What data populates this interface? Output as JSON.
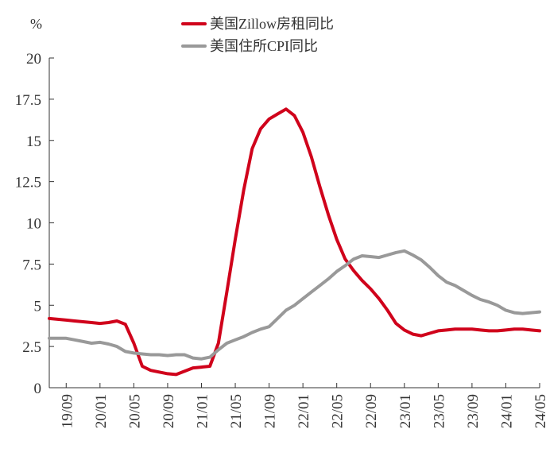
{
  "chart_data": {
    "type": "line",
    "unit_label": "%",
    "ylim": [
      0,
      20
    ],
    "y_ticks": [
      "0",
      "2.5",
      "5",
      "7.5",
      "10",
      "12.5",
      "15",
      "17.5",
      "20"
    ],
    "x_tick_labels": [
      "19/09",
      "20/01",
      "20/05",
      "20/09",
      "21/01",
      "21/05",
      "21/09",
      "22/01",
      "22/05",
      "22/09",
      "23/01",
      "23/05",
      "23/09",
      "24/01",
      "24/05"
    ],
    "x_range": [
      "2019-07",
      "2024-05"
    ],
    "legend_position": "top-center",
    "grid": false,
    "x": [
      "2019-07",
      "2019-08",
      "2019-09",
      "2019-10",
      "2019-11",
      "2019-12",
      "2020-01",
      "2020-02",
      "2020-03",
      "2020-04",
      "2020-05",
      "2020-06",
      "2020-07",
      "2020-08",
      "2020-09",
      "2020-10",
      "2020-11",
      "2020-12",
      "2021-01",
      "2021-02",
      "2021-03",
      "2021-04",
      "2021-05",
      "2021-06",
      "2021-07",
      "2021-08",
      "2021-09",
      "2021-10",
      "2021-11",
      "2021-12",
      "2022-01",
      "2022-02",
      "2022-03",
      "2022-04",
      "2022-05",
      "2022-06",
      "2022-07",
      "2022-08",
      "2022-09",
      "2022-10",
      "2022-11",
      "2022-12",
      "2023-01",
      "2023-02",
      "2023-03",
      "2023-04",
      "2023-05",
      "2023-06",
      "2023-07",
      "2023-08",
      "2023-09",
      "2023-10",
      "2023-11",
      "2023-12",
      "2024-01",
      "2024-02",
      "2024-03",
      "2024-04",
      "2024-05"
    ],
    "series": [
      {
        "name": "美国Zillow房租同比",
        "color": "#d0021b",
        "values": [
          4.2,
          4.15,
          4.1,
          4.05,
          4.0,
          3.95,
          3.9,
          3.95,
          4.05,
          3.85,
          2.7,
          1.3,
          1.05,
          0.95,
          0.85,
          0.8,
          1.0,
          1.2,
          1.25,
          1.3,
          2.7,
          5.8,
          9.0,
          12.0,
          14.5,
          15.7,
          16.3,
          16.6,
          16.9,
          16.5,
          15.5,
          14.0,
          12.2,
          10.5,
          9.0,
          7.8,
          7.1,
          6.5,
          6.0,
          5.4,
          4.7,
          3.9,
          3.5,
          3.25,
          3.15,
          3.3,
          3.45,
          3.5,
          3.55,
          3.55,
          3.55,
          3.5,
          3.45,
          3.45,
          3.5,
          3.55,
          3.55,
          3.5,
          3.45
        ]
      },
      {
        "name": "美国住所CPI同比",
        "color": "#999999",
        "values": [
          3.0,
          3.0,
          3.0,
          2.9,
          2.8,
          2.7,
          2.75,
          2.65,
          2.5,
          2.2,
          2.1,
          2.05,
          2.0,
          2.0,
          1.95,
          2.0,
          2.0,
          1.8,
          1.75,
          1.85,
          2.3,
          2.7,
          2.9,
          3.1,
          3.35,
          3.55,
          3.7,
          4.2,
          4.7,
          5.0,
          5.4,
          5.8,
          6.2,
          6.6,
          7.05,
          7.4,
          7.8,
          8.0,
          7.95,
          7.9,
          8.05,
          8.2,
          8.3,
          8.05,
          7.75,
          7.3,
          6.8,
          6.4,
          6.2,
          5.9,
          5.6,
          5.35,
          5.2,
          5.0,
          4.7,
          4.55,
          4.5,
          4.55,
          4.6
        ]
      }
    ]
  }
}
